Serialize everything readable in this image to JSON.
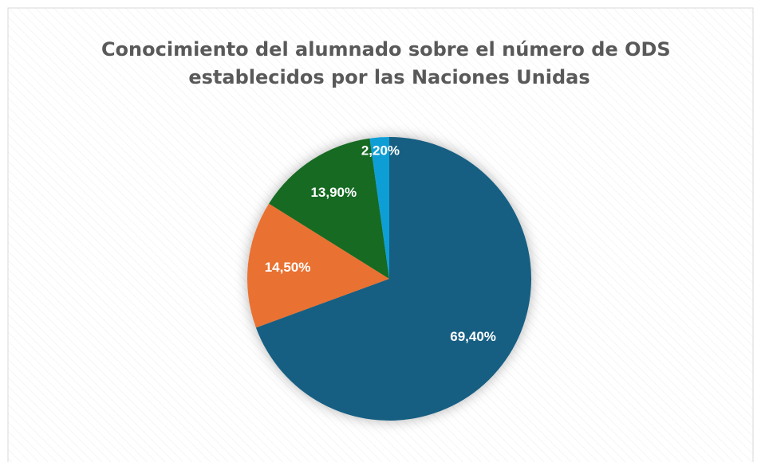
{
  "chart_data": {
    "type": "pie",
    "title": "Conocimiento del alumnado sobre el número de ODS establecidos por las Naciones Unidas",
    "values": [
      69.4,
      14.5,
      13.9,
      2.2
    ],
    "value_labels": [
      "69,40%",
      "14,50%",
      "13,90%",
      "2,20%"
    ],
    "colors": [
      "#175f82",
      "#e97132",
      "#196b24",
      "#0f9ed5"
    ],
    "start_angle": 0,
    "direction": "clockwise"
  }
}
